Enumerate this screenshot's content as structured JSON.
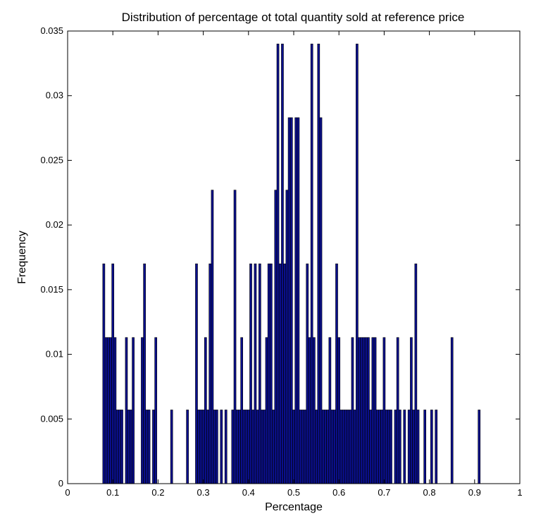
{
  "chart_data": {
    "type": "bar",
    "title": "Distribution of percentage ot total quantity sold at reference price",
    "xlabel": "Percentage",
    "ylabel": "Frequency",
    "xlim": [
      0,
      1
    ],
    "ylim": [
      0,
      0.035
    ],
    "xticks": [
      "0",
      "0.1",
      "0.2",
      "0.3",
      "0.4",
      "0.5",
      "0.6",
      "0.7",
      "0.8",
      "0.9",
      "1"
    ],
    "yticks": [
      "0",
      "0.005",
      "0.01",
      "0.015",
      "0.02",
      "0.025",
      "0.03",
      "0.035"
    ],
    "grid": false,
    "colors": {
      "bar_fill": "#0a0f8c",
      "bar_edge": "#000000",
      "axes": "#000000"
    },
    "x": [
      0.08,
      0.085,
      0.09,
      0.095,
      0.1,
      0.105,
      0.11,
      0.115,
      0.12,
      0.13,
      0.135,
      0.14,
      0.145,
      0.165,
      0.17,
      0.175,
      0.18,
      0.19,
      0.195,
      0.23,
      0.265,
      0.285,
      0.29,
      0.295,
      0.3,
      0.305,
      0.31,
      0.315,
      0.32,
      0.325,
      0.33,
      0.34,
      0.35,
      0.365,
      0.37,
      0.375,
      0.38,
      0.385,
      0.39,
      0.395,
      0.4,
      0.405,
      0.41,
      0.415,
      0.42,
      0.425,
      0.43,
      0.435,
      0.44,
      0.445,
      0.45,
      0.455,
      0.46,
      0.465,
      0.47,
      0.475,
      0.48,
      0.485,
      0.49,
      0.495,
      0.5,
      0.505,
      0.51,
      0.515,
      0.52,
      0.525,
      0.53,
      0.535,
      0.54,
      0.545,
      0.55,
      0.555,
      0.56,
      0.565,
      0.57,
      0.575,
      0.58,
      0.585,
      0.59,
      0.595,
      0.6,
      0.605,
      0.61,
      0.615,
      0.62,
      0.625,
      0.63,
      0.635,
      0.64,
      0.645,
      0.65,
      0.655,
      0.66,
      0.665,
      0.67,
      0.675,
      0.68,
      0.685,
      0.69,
      0.695,
      0.7,
      0.705,
      0.71,
      0.715,
      0.725,
      0.73,
      0.735,
      0.745,
      0.755,
      0.76,
      0.765,
      0.77,
      0.775,
      0.79,
      0.805,
      0.815,
      0.85,
      0.91
    ],
    "values": [
      0.017,
      0.0113,
      0.0113,
      0.0113,
      0.017,
      0.0113,
      0.0057,
      0.0057,
      0.0057,
      0.0113,
      0.0057,
      0.0057,
      0.0113,
      0.0113,
      0.017,
      0.0057,
      0.0057,
      0.0057,
      0.0113,
      0.0057,
      0.0057,
      0.017,
      0.0057,
      0.0057,
      0.0057,
      0.0113,
      0.0057,
      0.017,
      0.0227,
      0.0057,
      0.0057,
      0.0057,
      0.0057,
      0.0057,
      0.0227,
      0.0057,
      0.0057,
      0.0113,
      0.0057,
      0.0057,
      0.0057,
      0.017,
      0.0057,
      0.017,
      0.0057,
      0.017,
      0.0057,
      0.0057,
      0.0113,
      0.017,
      0.017,
      0.0057,
      0.0227,
      0.034,
      0.017,
      0.034,
      0.017,
      0.0227,
      0.0283,
      0.0283,
      0.0057,
      0.0283,
      0.0283,
      0.0057,
      0.0057,
      0.0057,
      0.017,
      0.0113,
      0.034,
      0.0113,
      0.0057,
      0.034,
      0.0283,
      0.0057,
      0.0057,
      0.0057,
      0.0113,
      0.0057,
      0.0057,
      0.017,
      0.0113,
      0.0057,
      0.0057,
      0.0057,
      0.0057,
      0.0057,
      0.0113,
      0.0057,
      0.034,
      0.0113,
      0.0113,
      0.0113,
      0.0113,
      0.0113,
      0.0057,
      0.0113,
      0.0113,
      0.0057,
      0.0057,
      0.0057,
      0.0113,
      0.0057,
      0.0057,
      0.0057,
      0.0057,
      0.0113,
      0.0057,
      0.0057,
      0.0057,
      0.0113,
      0.0057,
      0.017,
      0.0057,
      0.0057,
      0.0057,
      0.0057,
      0.0113,
      0.0057
    ]
  }
}
